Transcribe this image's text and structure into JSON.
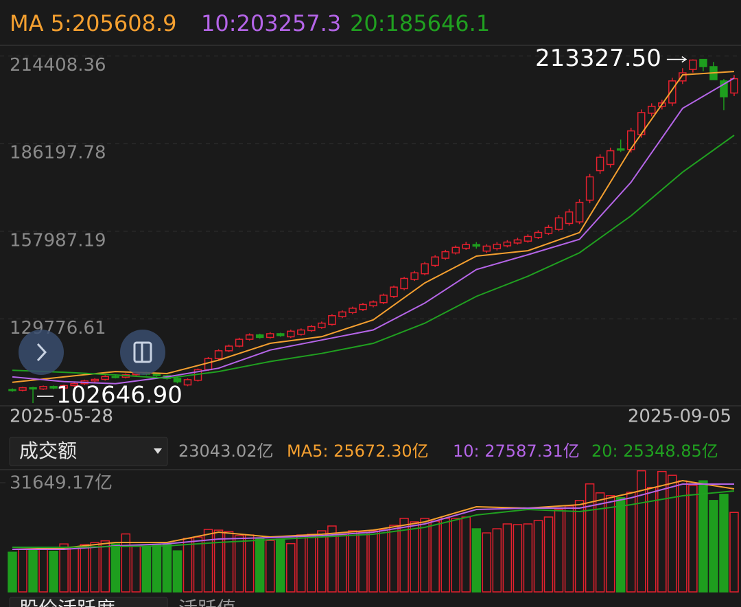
{
  "chart_data": [
    {
      "type": "candlestick",
      "open": [
        107000,
        106800,
        107600,
        107200,
        108000,
        107500,
        108300,
        108900,
        109800,
        110300,
        111200,
        111000,
        111800,
        112300,
        112000,
        111500,
        110600,
        108500,
        110000,
        113400,
        117000,
        119500,
        121000,
        123200,
        124600,
        123800,
        125000,
        124000,
        124800,
        126000,
        127000,
        128000,
        130500,
        131800,
        132800,
        134000,
        135000,
        137000,
        139500,
        142500,
        144300,
        147000,
        149300,
        151000,
        152500,
        153700,
        151600,
        152400,
        153300,
        154200,
        154800,
        156000,
        157300,
        158600,
        160500,
        161000,
        168000,
        177500,
        179500,
        184500,
        184300,
        189100,
        196000,
        198200,
        199300,
        206400,
        210100,
        213300,
        211000,
        206400,
        202500
      ],
      "close": [
        106700,
        107600,
        107200,
        108000,
        107500,
        108300,
        108900,
        109800,
        110300,
        111200,
        111000,
        111800,
        112300,
        112000,
        111500,
        110600,
        109500,
        110200,
        113400,
        117000,
        119500,
        121000,
        123200,
        124600,
        123800,
        125000,
        124400,
        125800,
        126200,
        127300,
        128400,
        130800,
        132000,
        133200,
        134400,
        135200,
        137400,
        140000,
        142800,
        144600,
        147500,
        149700,
        151400,
        152800,
        153700,
        153200,
        153200,
        153800,
        154500,
        155200,
        156300,
        157600,
        159200,
        162300,
        164200,
        167300,
        175500,
        181800,
        183900,
        184100,
        190300,
        196200,
        198200,
        199300,
        206400,
        209000,
        213100,
        211000,
        206800,
        201300,
        207100
      ],
      "high": [
        107400,
        107900,
        107900,
        108300,
        108300,
        108600,
        109300,
        110200,
        110700,
        111600,
        111600,
        112200,
        112700,
        112800,
        112300,
        111800,
        111000,
        110600,
        113800,
        117500,
        120000,
        121500,
        123700,
        125100,
        125000,
        125500,
        125300,
        126300,
        126700,
        127800,
        128900,
        131300,
        132500,
        133700,
        134900,
        135700,
        137900,
        140500,
        143300,
        145200,
        148100,
        150300,
        152000,
        153400,
        154600,
        154500,
        153800,
        154500,
        155100,
        155900,
        157000,
        158300,
        160000,
        163200,
        165200,
        168300,
        176500,
        182800,
        184900,
        187500,
        191300,
        197200,
        199200,
        200300,
        207400,
        210500,
        213327.5,
        213000,
        212500,
        207000,
        208300
      ],
      "low": [
        106300,
        106400,
        102646.9,
        106900,
        107100,
        107200,
        107900,
        108500,
        109400,
        109900,
        110600,
        110600,
        111400,
        111600,
        111100,
        110200,
        109000,
        108100,
        109600,
        113000,
        116600,
        119100,
        120600,
        122800,
        123400,
        123400,
        124000,
        123600,
        124400,
        125600,
        126600,
        127600,
        130000,
        131300,
        132300,
        133500,
        134500,
        136500,
        139000,
        142000,
        143800,
        146500,
        148800,
        150500,
        152000,
        152400,
        151000,
        151800,
        152800,
        153700,
        154300,
        155500,
        156800,
        158000,
        159800,
        160300,
        167000,
        176500,
        178500,
        183500,
        183300,
        188100,
        195000,
        197200,
        198300,
        205400,
        209100,
        209500,
        207000,
        197000,
        201500
      ],
      "up_color": "#e5202e",
      "down_color": "#1e9e1e",
      "ma_x": [
        0,
        5,
        10,
        15,
        20,
        25,
        30,
        35,
        40,
        45,
        50,
        55,
        60,
        65,
        70
      ],
      "series": [
        {
          "name": "MA 5:205608.9",
          "color": "#f5a030",
          "values": [
            109350,
            111080,
            112810,
            112160,
            116480,
            121890,
            124050,
            129450,
            141340,
            149990,
            151720,
            157560,
            184580,
            208360,
            209430
          ]
        },
        {
          "name": "10:203257.3",
          "color": "#b565e8",
          "values": [
            111080,
            109570,
            108920,
            111080,
            113890,
            119730,
            122970,
            126220,
            134860,
            145660,
            150420,
            155390,
            173770,
            197550,
            207280
          ]
        },
        {
          "name": "20:185646.1",
          "color": "#20a020",
          "values": [
            113240,
            112590,
            111730,
            110650,
            112810,
            116050,
            118650,
            121890,
            128380,
            137020,
            143510,
            151070,
            162960,
            177010,
            188900
          ]
        }
      ],
      "ylim": [
        102000,
        218300
      ],
      "yticks": [
        214408.36,
        186197.78,
        157987.19,
        129776.61
      ],
      "grid": true,
      "x_labels": [
        "2025-05-28",
        "2025-09-05"
      ],
      "annotations": [
        {
          "value": 213327.5,
          "label": "213327.50"
        },
        {
          "value": 102646.9,
          "label": "102646.90"
        }
      ]
    },
    {
      "type": "bar",
      "selector": "成交额",
      "current": "23043.02亿",
      "values": [
        11500,
        12400,
        12000,
        12500,
        11800,
        13900,
        13000,
        13700,
        14300,
        14800,
        13900,
        16800,
        13500,
        13300,
        13500,
        13700,
        11900,
        15500,
        15900,
        18100,
        17900,
        17500,
        16300,
        16500,
        15500,
        14900,
        15300,
        14000,
        16500,
        16700,
        17700,
        19100,
        16600,
        17700,
        17300,
        17700,
        18000,
        19300,
        21300,
        20300,
        21300,
        20500,
        21300,
        21300,
        21700,
        18300,
        17100,
        18300,
        19700,
        19500,
        19700,
        20700,
        21700,
        23900,
        24900,
        26500,
        31300,
        28700,
        27900,
        27300,
        28900,
        35100,
        30300,
        34900,
        33800,
        32200,
        30900,
        32200,
        26500,
        28300,
        23043.02
      ],
      "ma_x": [
        0,
        5,
        10,
        15,
        20,
        25,
        30,
        35,
        40,
        45,
        50,
        55,
        60,
        65,
        70
      ],
      "series": [
        {
          "name": "MA5: 25672.30亿",
          "color": "#f5a030",
          "values": [
            12340,
            12740,
            14330,
            14330,
            17310,
            15920,
            16720,
            17910,
            20300,
            24680,
            24280,
            25270,
            28660,
            32240,
            29850
          ]
        },
        {
          "name": "10: 27587.31亿",
          "color": "#b565e8",
          "values": [
            12340,
            12340,
            13330,
            13930,
            15320,
            15720,
            16320,
            17310,
            19700,
            23880,
            24280,
            24280,
            27260,
            31240,
            31240
          ]
        },
        {
          "name": "20: 25348.85亿",
          "color": "#20a020",
          "values": [
            12940,
            12940,
            13130,
            13330,
            14330,
            15120,
            15920,
            16720,
            18710,
            22290,
            23880,
            23280,
            25270,
            27860,
            29250
          ]
        }
      ],
      "ylim": [
        0,
        35230
      ],
      "yticks": [
        {
          "value": 31649.17,
          "label": "31649.17亿"
        }
      ]
    }
  ],
  "tabs": [
    "股价活跃度",
    "活跃值"
  ]
}
